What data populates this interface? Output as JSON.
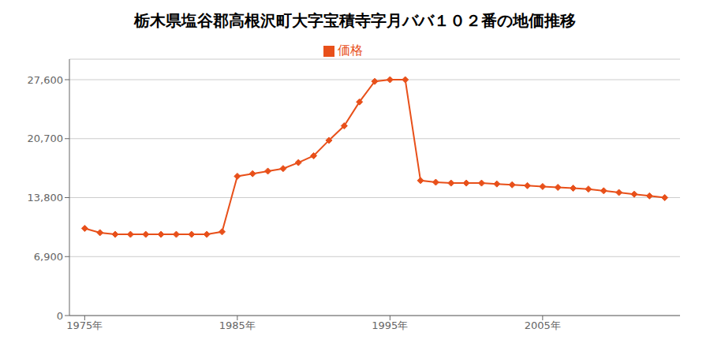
{
  "chart_data": {
    "type": "line",
    "title": "栃木県塩谷郡高根沢町大字宝積寺字月ババ１０２番の地価推移",
    "x": [
      1975,
      1976,
      1977,
      1978,
      1979,
      1980,
      1981,
      1982,
      1983,
      1984,
      1985,
      1986,
      1987,
      1988,
      1989,
      1990,
      1991,
      1992,
      1993,
      1994,
      1995,
      1996,
      1997,
      1998,
      1999,
      2000,
      2001,
      2002,
      2003,
      2004,
      2005,
      2006,
      2007,
      2008,
      2009,
      2010,
      2011,
      2012,
      2013
    ],
    "series": [
      {
        "name": "価格",
        "color": "#E8501A",
        "marker": "diamond",
        "values": [
          10200,
          9700,
          9500,
          9500,
          9500,
          9500,
          9500,
          9500,
          9500,
          9800,
          16300,
          16600,
          16900,
          17200,
          17900,
          18700,
          20500,
          22200,
          25000,
          27400,
          27600,
          27600,
          15800,
          15600,
          15500,
          15500,
          15500,
          15400,
          15300,
          15200,
          15100,
          15000,
          14900,
          14800,
          14600,
          14400,
          14200,
          14000,
          13800
        ]
      }
    ],
    "xlim": [
      1974,
      2014
    ],
    "xticks": [
      {
        "value": 1975,
        "label": "1975年"
      },
      {
        "value": 1985,
        "label": "1985年"
      },
      {
        "value": 1995,
        "label": "1995年"
      },
      {
        "value": 2005,
        "label": "2005年"
      }
    ],
    "ylim": [
      0,
      30000
    ],
    "yticks": [
      0,
      {
        "value": 6900,
        "label": "6,900"
      },
      {
        "value": 13800,
        "label": "13,800"
      },
      {
        "value": 20700,
        "label": "20,700"
      },
      {
        "value": 27600,
        "label": "27,600"
      }
    ],
    "grid": true,
    "legend": "top"
  }
}
